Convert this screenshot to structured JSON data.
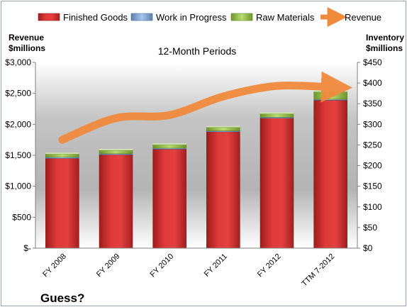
{
  "chart_data": {
    "type": "bar",
    "stacked": true,
    "title": "12-Month Periods",
    "caption": "Guess?",
    "categories": [
      "FY 2008",
      "FY 2009",
      "FY 2010",
      "FY 2011",
      "FY 2012",
      "TTM 7-2012"
    ],
    "left_axis": {
      "label_line1": "Revenue",
      "label_line2": "$millions",
      "range": [
        0,
        3000
      ],
      "ticks": [
        0,
        500,
        1000,
        1500,
        2000,
        2500,
        3000
      ],
      "tick_labels": [
        "$-",
        "$500",
        "$1,000",
        "$1,500",
        "$2,000",
        "$2,500",
        "$3,000"
      ]
    },
    "right_axis": {
      "label_line1": "Inventory",
      "label_line2": "$millions",
      "range": [
        0,
        450
      ],
      "ticks": [
        0,
        50,
        100,
        150,
        200,
        250,
        300,
        350,
        400,
        450
      ],
      "tick_labels": [
        "$0",
        "$50",
        "$100",
        "$150",
        "$200",
        "$250",
        "$300",
        "$350",
        "$400",
        "$450"
      ]
    },
    "legend_position": "top",
    "grid": false,
    "series": [
      {
        "name": "Finished Goods",
        "type": "bar",
        "axis": "left",
        "color": "#d42b2b",
        "values": [
          1450,
          1510,
          1600,
          1880,
          2100,
          2390
        ]
      },
      {
        "name": "Work in Progress",
        "type": "bar",
        "axis": "left",
        "color": "#7ea6d8",
        "values": [
          20,
          15,
          15,
          15,
          15,
          15
        ]
      },
      {
        "name": "Raw Materials",
        "type": "bar",
        "axis": "left",
        "color": "#9cc94a",
        "values": [
          50,
          55,
          55,
          55,
          55,
          120
        ]
      },
      {
        "name": "Revenue",
        "type": "line",
        "axis": "left",
        "color": "#f08a3c",
        "values": [
          1750,
          2100,
          2150,
          2450,
          2620,
          2600
        ]
      }
    ]
  }
}
